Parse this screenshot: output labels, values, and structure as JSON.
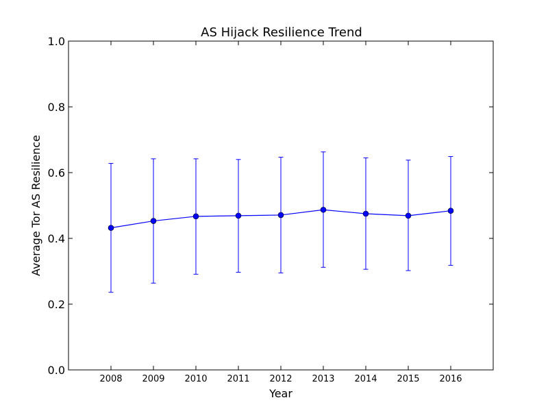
{
  "chart_data": {
    "type": "line",
    "title": "AS Hijack Resilience Trend",
    "xlabel": "Year",
    "ylabel": "Average Tor AS Resilience",
    "x": [
      2008,
      2009,
      2010,
      2011,
      2012,
      2013,
      2014,
      2015,
      2016
    ],
    "xlim": [
      2007,
      2017
    ],
    "ylim": [
      0.0,
      1.0
    ],
    "yticks": [
      "0.0",
      "0.2",
      "0.4",
      "0.6",
      "0.8",
      "1.0"
    ],
    "series": [
      {
        "values": [
          0.432,
          0.453,
          0.467,
          0.469,
          0.471,
          0.487,
          0.475,
          0.469,
          0.484
        ],
        "error_low": [
          0.236,
          0.264,
          0.291,
          0.297,
          0.295,
          0.312,
          0.306,
          0.302,
          0.318
        ],
        "error_high": [
          0.628,
          0.642,
          0.642,
          0.64,
          0.647,
          0.663,
          0.645,
          0.638,
          0.649
        ],
        "color": "#0000ff",
        "marker": "circle"
      }
    ],
    "grid": false,
    "legend": "none"
  }
}
